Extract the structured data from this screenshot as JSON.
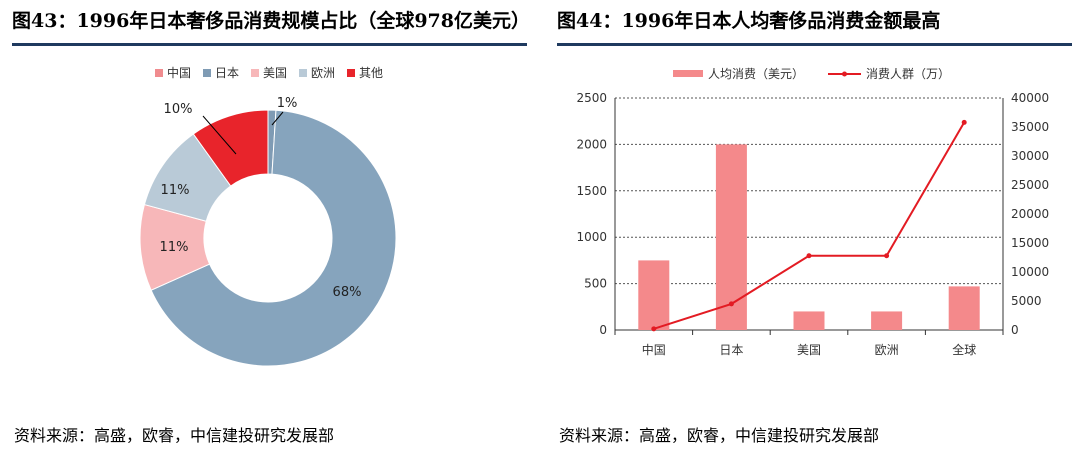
{
  "left": {
    "title": "图43：1996年日本奢侈品消费规模占比（全球978亿美元）",
    "source": "资料来源：高盛，欧睿，中信建投研究发展部"
  },
  "right": {
    "title": "图44：1996年日本人均奢侈品消费金额最高",
    "source": "资料来源：高盛，欧睿，中信建投研究发展部"
  },
  "colors": {
    "title_rule": "#1f3a5f",
    "china": "#7f9bb4",
    "japan": "#86a4bd",
    "usa": "#f7b7b9",
    "europe": "#b9cad7",
    "other": "#e8242b",
    "bar": "#f4898b",
    "line": "#e31b23"
  },
  "chart_data": [
    {
      "type": "pie",
      "legend_position": "top",
      "categories": [
        "中国",
        "日本",
        "美国",
        "欧洲",
        "其他"
      ],
      "values": [
        1,
        68,
        11,
        11,
        10
      ],
      "labels": [
        "1%",
        "68%",
        "11%",
        "11%",
        "10%"
      ],
      "legend_colors": [
        "#f08c8f",
        "#7f9bb4",
        "#f7b7b9",
        "#b9cad7",
        "#e8242b"
      ],
      "slice_colors": [
        "#7f9bb4",
        "#86a4bd",
        "#f7b7b9",
        "#b9cad7",
        "#e8242b"
      ]
    },
    {
      "type": "bar",
      "legend_position": "top",
      "categories": [
        "中国",
        "日本",
        "美国",
        "欧洲",
        "全球"
      ],
      "series": [
        {
          "name": "人均消费（美元）",
          "type": "bar",
          "axis": "left",
          "values": [
            750,
            2000,
            200,
            200,
            470
          ]
        },
        {
          "name": "消费人群（万）",
          "type": "line",
          "axis": "right",
          "values": [
            200,
            4500,
            12800,
            12800,
            35800
          ]
        }
      ],
      "ylim": [
        0,
        2500
      ],
      "y_ticks": [
        0,
        500,
        1000,
        1500,
        2000,
        2500
      ],
      "y2lim": [
        0,
        40000
      ],
      "y2_ticks": [
        0,
        5000,
        10000,
        15000,
        20000,
        25000,
        30000,
        35000,
        40000
      ],
      "grid": true
    }
  ]
}
